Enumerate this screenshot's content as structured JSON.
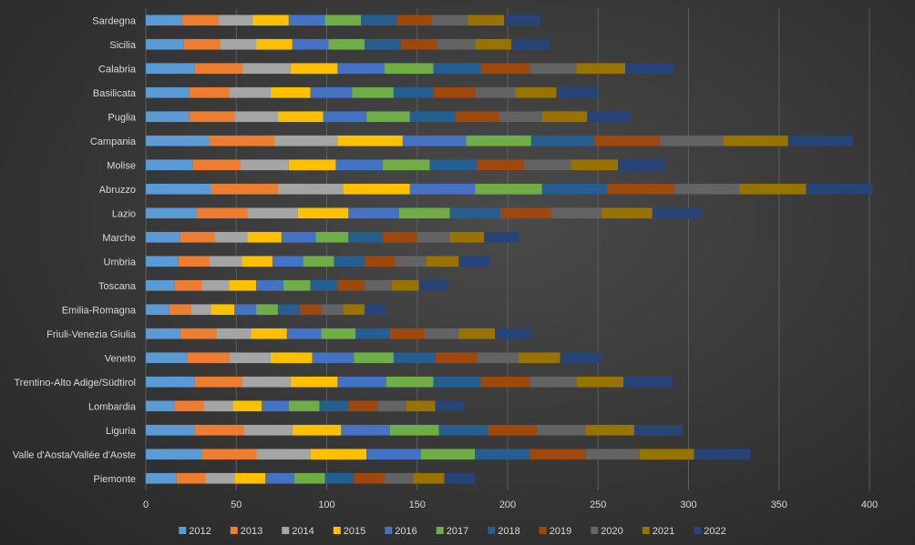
{
  "chart_data": {
    "type": "bar",
    "orientation": "horizontal",
    "stacked": true,
    "title": "",
    "xlabel": "",
    "ylabel": "",
    "xlim": [
      0,
      400
    ],
    "ticks": [
      0,
      50,
      100,
      150,
      200,
      250,
      300,
      350,
      400
    ],
    "grid": true,
    "legend_position": "bottom",
    "categories": [
      "Sardegna",
      "Sicilia",
      "Calabria",
      "Basilicata",
      "Puglia",
      "Campania",
      "Molise",
      "Abruzzo",
      "Lazio",
      "Marche",
      "Umbria",
      "Toscana",
      "Emilia-Romagna",
      "Friuli-Venezia Giulia",
      "Veneto",
      "Trentino-Alto Adige/Südtirol",
      "Lombardia",
      "Liguria",
      "Valle d'Aosta/Vallée d'Aoste",
      "Piemonte"
    ],
    "series": [
      {
        "name": "2012",
        "color": "#5b9bd5",
        "values": [
          20,
          21,
          27,
          24,
          24,
          35,
          26,
          36,
          28,
          19,
          18,
          16,
          13,
          19,
          23,
          27,
          16,
          27,
          31,
          17
        ]
      },
      {
        "name": "2013",
        "color": "#ed7d31",
        "values": [
          20,
          20,
          26,
          22,
          25,
          36,
          26,
          37,
          28,
          19,
          17,
          15,
          12,
          20,
          23,
          26,
          16,
          27,
          30,
          16
        ]
      },
      {
        "name": "2014",
        "color": "#a5a5a5",
        "values": [
          19,
          20,
          27,
          23,
          24,
          35,
          27,
          36,
          28,
          18,
          18,
          15,
          11,
          19,
          23,
          27,
          16,
          27,
          30,
          16
        ]
      },
      {
        "name": "2015",
        "color": "#ffc000",
        "values": [
          20,
          20,
          26,
          22,
          25,
          36,
          26,
          37,
          28,
          19,
          17,
          15,
          13,
          20,
          23,
          26,
          16,
          27,
          31,
          17
        ]
      },
      {
        "name": "2016",
        "color": "#4472c4",
        "values": [
          20,
          20,
          26,
          23,
          24,
          35,
          26,
          36,
          28,
          19,
          17,
          15,
          12,
          19,
          23,
          27,
          15,
          27,
          30,
          16
        ]
      },
      {
        "name": "2017",
        "color": "#70ad47",
        "values": [
          20,
          20,
          27,
          23,
          24,
          36,
          26,
          37,
          28,
          18,
          17,
          15,
          12,
          19,
          22,
          26,
          17,
          27,
          30,
          17
        ]
      },
      {
        "name": "2018",
        "color": "#255e91",
        "values": [
          20,
          20,
          26,
          22,
          25,
          35,
          26,
          36,
          28,
          19,
          17,
          15,
          12,
          19,
          23,
          26,
          16,
          27,
          30,
          16
        ]
      },
      {
        "name": "2019",
        "color": "#9e480e",
        "values": [
          19,
          20,
          27,
          23,
          24,
          36,
          26,
          37,
          28,
          19,
          17,
          15,
          12,
          19,
          23,
          27,
          16,
          27,
          31,
          17
        ]
      },
      {
        "name": "2020",
        "color": "#636363",
        "values": [
          20,
          21,
          26,
          22,
          24,
          35,
          26,
          36,
          28,
          18,
          17,
          15,
          12,
          19,
          23,
          26,
          16,
          27,
          30,
          16
        ]
      },
      {
        "name": "2021",
        "color": "#997300",
        "values": [
          20,
          20,
          27,
          23,
          25,
          36,
          26,
          37,
          28,
          19,
          18,
          15,
          12,
          20,
          23,
          26,
          16,
          27,
          30,
          17
        ]
      },
      {
        "name": "2022",
        "color": "#264478",
        "values": [
          20,
          21,
          27,
          23,
          24,
          36,
          26,
          37,
          27,
          19,
          17,
          16,
          12,
          20,
          23,
          27,
          16,
          27,
          31,
          17
        ]
      }
    ]
  }
}
